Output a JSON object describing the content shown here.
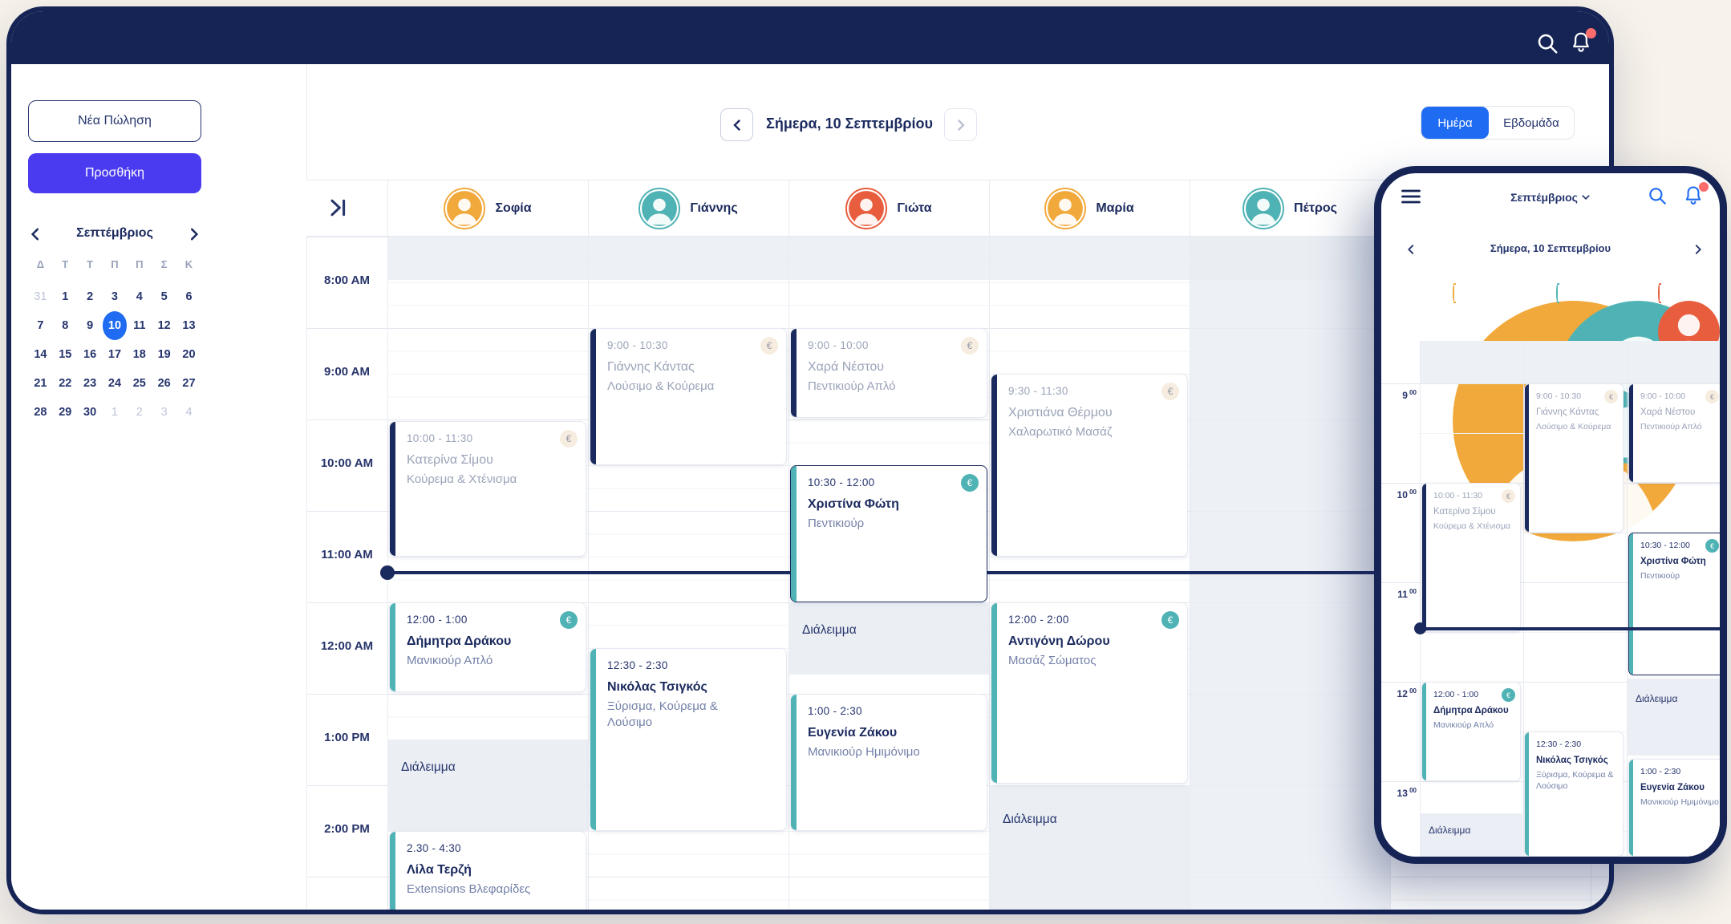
{
  "symbols": {
    "euro": "€"
  },
  "colors": {
    "navy": "#152455",
    "ink": "#1B2A5E",
    "blue": "#1F6BF2",
    "indigo": "#4A3BF0",
    "teal": "#4FB3B5",
    "red": "#FC6C6C",
    "break_grey": "#EDF0F5",
    "cream": "#F7F2EA"
  },
  "icons": {
    "search": "magnifier",
    "notifications": "bell-with-red-dot",
    "menu": "hamburger",
    "collapse_sidebar": "chevron-bar-right",
    "prev": "chevron-left",
    "next": "chevron-right",
    "month_dropdown": "chevron-down"
  },
  "desktop": {
    "sidebar": {
      "new_sale_label": "Νέα Πώληση",
      "add_label": "Προσθήκη",
      "mini_calendar": {
        "month": "Σεπτέμβριος",
        "weekdays": [
          "Δ",
          "Τ",
          "Τ",
          "Π",
          "Π",
          "Σ",
          "Κ"
        ],
        "days": [
          {
            "t": "31",
            "s": "muted"
          },
          {
            "t": "1",
            "s": "normal"
          },
          {
            "t": "2",
            "s": "normal"
          },
          {
            "t": "3",
            "s": "normal"
          },
          {
            "t": "4",
            "s": "normal"
          },
          {
            "t": "5",
            "s": "normal"
          },
          {
            "t": "6",
            "s": "normal"
          },
          {
            "t": "7",
            "s": "normal"
          },
          {
            "t": "8",
            "s": "normal"
          },
          {
            "t": "9",
            "s": "normal"
          },
          {
            "t": "10",
            "s": "selected"
          },
          {
            "t": "11",
            "s": "normal"
          },
          {
            "t": "12",
            "s": "normal"
          },
          {
            "t": "13",
            "s": "normal"
          },
          {
            "t": "14",
            "s": "normal"
          },
          {
            "t": "15",
            "s": "normal"
          },
          {
            "t": "16",
            "s": "normal"
          },
          {
            "t": "17",
            "s": "normal"
          },
          {
            "t": "18",
            "s": "normal"
          },
          {
            "t": "19",
            "s": "normal"
          },
          {
            "t": "20",
            "s": "normal"
          },
          {
            "t": "21",
            "s": "normal"
          },
          {
            "t": "22",
            "s": "normal"
          },
          {
            "t": "23",
            "s": "normal"
          },
          {
            "t": "24",
            "s": "normal"
          },
          {
            "t": "25",
            "s": "normal"
          },
          {
            "t": "26",
            "s": "normal"
          },
          {
            "t": "27",
            "s": "normal"
          },
          {
            "t": "28",
            "s": "normal"
          },
          {
            "t": "29",
            "s": "normal"
          },
          {
            "t": "30",
            "s": "normal"
          },
          {
            "t": "1",
            "s": "muted"
          },
          {
            "t": "2",
            "s": "muted"
          },
          {
            "t": "3",
            "s": "muted"
          },
          {
            "t": "4",
            "s": "muted"
          }
        ]
      }
    },
    "calendar_header": {
      "today_label": "Σήμερα, 10 Σεπτεμβρίου",
      "view_day": "Ημέρα",
      "view_week": "Εβδομάδα"
    },
    "staff": [
      {
        "name": "Σοφία",
        "ring_style": "--ring:#F2A93B"
      },
      {
        "name": "Γιάννης",
        "ring_style": "--ring:#4FB3B5"
      },
      {
        "name": "Γιώτα",
        "ring_style": "--ring:#E85D3D"
      },
      {
        "name": "Μαρία",
        "ring_style": "--ring:#F2A93B"
      },
      {
        "name": "Πέτρος",
        "ring_style": "--ring:#4FB3B5"
      }
    ],
    "times": [
      "8:00 AM",
      "9:00 AM",
      "10:00 AM",
      "11:00 AM",
      "12:00 AM",
      "1:00 PM",
      "2:00 PM"
    ],
    "break_label": "Διάλειμμα",
    "appointments": [
      {
        "time": "10:00 - 11:30",
        "client": "Κατερίνα Σίμου",
        "service": "Κούρεμα & Χτένισμα",
        "status": "past",
        "paid_badge": true
      },
      {
        "time": "9:00 - 10:30",
        "client": "Γιάννης Κάντας",
        "service": "Λούσιμο & Κούρεμα",
        "status": "past",
        "paid_badge": true
      },
      {
        "time": "9:00 - 10:00",
        "client": "Χαρά Νέστου",
        "service": "Πεντικιούρ Απλό",
        "status": "past",
        "paid_badge": true
      },
      {
        "time": "10:30 - 12:00",
        "client": "Χριστίνα Φώτη",
        "service": "Πεντικιούρ",
        "status": "current",
        "paid_badge": true
      },
      {
        "time": "9:30 - 11:30",
        "client": "Χριστιάνα Θέρμου",
        "service": "Χαλαρωτικό Μασάζ",
        "status": "past",
        "paid_badge": true
      },
      {
        "time": "12:00 - 1:00",
        "client": "Δήμητρα Δράκου",
        "service": "Μανικιούρ Απλό",
        "status": "upcoming",
        "paid_badge": true
      },
      {
        "time": "12:30 - 2:30",
        "client": "Νικόλας Τσιγκός",
        "service": "Ξύρισμα, Κούρεμα & Λούσιμο",
        "status": "upcoming",
        "paid_badge": false
      },
      {
        "time": "1:00 - 2:30",
        "client": "Ευγενία Ζάκου",
        "service": "Μανικιούρ Ημιμόνιμο",
        "status": "upcoming",
        "paid_badge": false
      },
      {
        "time": "12:00 - 2:00",
        "client": "Αντιγόνη Δώρου",
        "service": "Μασάζ Σώματος",
        "status": "upcoming",
        "paid_badge": true
      },
      {
        "time": "2.30 - 4:30",
        "client": "Λίλα Τερζή",
        "service": "Extensions Βλεφαρίδες",
        "status": "upcoming",
        "paid_badge": false
      }
    ]
  },
  "phone": {
    "month_label": "Σεπτέμβριος",
    "today_label": "Σήμερα, 10 Σεπτεμβρίου",
    "times": [
      {
        "h": "9",
        "m": "00"
      },
      {
        "h": "10",
        "m": "00"
      },
      {
        "h": "11",
        "m": "00"
      },
      {
        "h": "12",
        "m": "00"
      },
      {
        "h": "13",
        "m": "00"
      }
    ]
  }
}
